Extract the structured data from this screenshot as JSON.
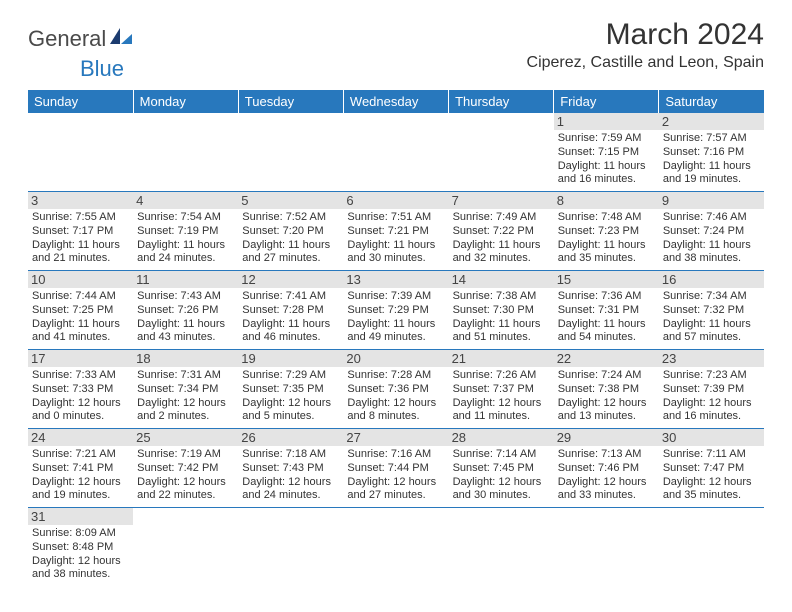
{
  "logo": {
    "text1": "General",
    "text2": "Blue"
  },
  "header": {
    "month_title": "March 2024",
    "location": "Ciperez, Castille and Leon, Spain"
  },
  "day_headers": [
    "Sunday",
    "Monday",
    "Tuesday",
    "Wednesday",
    "Thursday",
    "Friday",
    "Saturday"
  ],
  "colors": {
    "header_bg": "#2878bd",
    "header_text": "#ffffff",
    "daynum_bg": "#e4e4e4",
    "border": "#2878bd"
  },
  "weeks": [
    [
      {
        "empty": true
      },
      {
        "empty": true
      },
      {
        "empty": true
      },
      {
        "empty": true
      },
      {
        "empty": true
      },
      {
        "day": "1",
        "sunrise": "Sunrise: 7:59 AM",
        "sunset": "Sunset: 7:15 PM",
        "daylight1": "Daylight: 11 hours",
        "daylight2": "and 16 minutes."
      },
      {
        "day": "2",
        "sunrise": "Sunrise: 7:57 AM",
        "sunset": "Sunset: 7:16 PM",
        "daylight1": "Daylight: 11 hours",
        "daylight2": "and 19 minutes."
      }
    ],
    [
      {
        "day": "3",
        "sunrise": "Sunrise: 7:55 AM",
        "sunset": "Sunset: 7:17 PM",
        "daylight1": "Daylight: 11 hours",
        "daylight2": "and 21 minutes."
      },
      {
        "day": "4",
        "sunrise": "Sunrise: 7:54 AM",
        "sunset": "Sunset: 7:19 PM",
        "daylight1": "Daylight: 11 hours",
        "daylight2": "and 24 minutes."
      },
      {
        "day": "5",
        "sunrise": "Sunrise: 7:52 AM",
        "sunset": "Sunset: 7:20 PM",
        "daylight1": "Daylight: 11 hours",
        "daylight2": "and 27 minutes."
      },
      {
        "day": "6",
        "sunrise": "Sunrise: 7:51 AM",
        "sunset": "Sunset: 7:21 PM",
        "daylight1": "Daylight: 11 hours",
        "daylight2": "and 30 minutes."
      },
      {
        "day": "7",
        "sunrise": "Sunrise: 7:49 AM",
        "sunset": "Sunset: 7:22 PM",
        "daylight1": "Daylight: 11 hours",
        "daylight2": "and 32 minutes."
      },
      {
        "day": "8",
        "sunrise": "Sunrise: 7:48 AM",
        "sunset": "Sunset: 7:23 PM",
        "daylight1": "Daylight: 11 hours",
        "daylight2": "and 35 minutes."
      },
      {
        "day": "9",
        "sunrise": "Sunrise: 7:46 AM",
        "sunset": "Sunset: 7:24 PM",
        "daylight1": "Daylight: 11 hours",
        "daylight2": "and 38 minutes."
      }
    ],
    [
      {
        "day": "10",
        "sunrise": "Sunrise: 7:44 AM",
        "sunset": "Sunset: 7:25 PM",
        "daylight1": "Daylight: 11 hours",
        "daylight2": "and 41 minutes."
      },
      {
        "day": "11",
        "sunrise": "Sunrise: 7:43 AM",
        "sunset": "Sunset: 7:26 PM",
        "daylight1": "Daylight: 11 hours",
        "daylight2": "and 43 minutes."
      },
      {
        "day": "12",
        "sunrise": "Sunrise: 7:41 AM",
        "sunset": "Sunset: 7:28 PM",
        "daylight1": "Daylight: 11 hours",
        "daylight2": "and 46 minutes."
      },
      {
        "day": "13",
        "sunrise": "Sunrise: 7:39 AM",
        "sunset": "Sunset: 7:29 PM",
        "daylight1": "Daylight: 11 hours",
        "daylight2": "and 49 minutes."
      },
      {
        "day": "14",
        "sunrise": "Sunrise: 7:38 AM",
        "sunset": "Sunset: 7:30 PM",
        "daylight1": "Daylight: 11 hours",
        "daylight2": "and 51 minutes."
      },
      {
        "day": "15",
        "sunrise": "Sunrise: 7:36 AM",
        "sunset": "Sunset: 7:31 PM",
        "daylight1": "Daylight: 11 hours",
        "daylight2": "and 54 minutes."
      },
      {
        "day": "16",
        "sunrise": "Sunrise: 7:34 AM",
        "sunset": "Sunset: 7:32 PM",
        "daylight1": "Daylight: 11 hours",
        "daylight2": "and 57 minutes."
      }
    ],
    [
      {
        "day": "17",
        "sunrise": "Sunrise: 7:33 AM",
        "sunset": "Sunset: 7:33 PM",
        "daylight1": "Daylight: 12 hours",
        "daylight2": "and 0 minutes."
      },
      {
        "day": "18",
        "sunrise": "Sunrise: 7:31 AM",
        "sunset": "Sunset: 7:34 PM",
        "daylight1": "Daylight: 12 hours",
        "daylight2": "and 2 minutes."
      },
      {
        "day": "19",
        "sunrise": "Sunrise: 7:29 AM",
        "sunset": "Sunset: 7:35 PM",
        "daylight1": "Daylight: 12 hours",
        "daylight2": "and 5 minutes."
      },
      {
        "day": "20",
        "sunrise": "Sunrise: 7:28 AM",
        "sunset": "Sunset: 7:36 PM",
        "daylight1": "Daylight: 12 hours",
        "daylight2": "and 8 minutes."
      },
      {
        "day": "21",
        "sunrise": "Sunrise: 7:26 AM",
        "sunset": "Sunset: 7:37 PM",
        "daylight1": "Daylight: 12 hours",
        "daylight2": "and 11 minutes."
      },
      {
        "day": "22",
        "sunrise": "Sunrise: 7:24 AM",
        "sunset": "Sunset: 7:38 PM",
        "daylight1": "Daylight: 12 hours",
        "daylight2": "and 13 minutes."
      },
      {
        "day": "23",
        "sunrise": "Sunrise: 7:23 AM",
        "sunset": "Sunset: 7:39 PM",
        "daylight1": "Daylight: 12 hours",
        "daylight2": "and 16 minutes."
      }
    ],
    [
      {
        "day": "24",
        "sunrise": "Sunrise: 7:21 AM",
        "sunset": "Sunset: 7:41 PM",
        "daylight1": "Daylight: 12 hours",
        "daylight2": "and 19 minutes."
      },
      {
        "day": "25",
        "sunrise": "Sunrise: 7:19 AM",
        "sunset": "Sunset: 7:42 PM",
        "daylight1": "Daylight: 12 hours",
        "daylight2": "and 22 minutes."
      },
      {
        "day": "26",
        "sunrise": "Sunrise: 7:18 AM",
        "sunset": "Sunset: 7:43 PM",
        "daylight1": "Daylight: 12 hours",
        "daylight2": "and 24 minutes."
      },
      {
        "day": "27",
        "sunrise": "Sunrise: 7:16 AM",
        "sunset": "Sunset: 7:44 PM",
        "daylight1": "Daylight: 12 hours",
        "daylight2": "and 27 minutes."
      },
      {
        "day": "28",
        "sunrise": "Sunrise: 7:14 AM",
        "sunset": "Sunset: 7:45 PM",
        "daylight1": "Daylight: 12 hours",
        "daylight2": "and 30 minutes."
      },
      {
        "day": "29",
        "sunrise": "Sunrise: 7:13 AM",
        "sunset": "Sunset: 7:46 PM",
        "daylight1": "Daylight: 12 hours",
        "daylight2": "and 33 minutes."
      },
      {
        "day": "30",
        "sunrise": "Sunrise: 7:11 AM",
        "sunset": "Sunset: 7:47 PM",
        "daylight1": "Daylight: 12 hours",
        "daylight2": "and 35 minutes."
      }
    ],
    [
      {
        "day": "31",
        "sunrise": "Sunrise: 8:09 AM",
        "sunset": "Sunset: 8:48 PM",
        "daylight1": "Daylight: 12 hours",
        "daylight2": "and 38 minutes."
      },
      {
        "empty": true
      },
      {
        "empty": true
      },
      {
        "empty": true
      },
      {
        "empty": true
      },
      {
        "empty": true
      },
      {
        "empty": true
      }
    ]
  ]
}
